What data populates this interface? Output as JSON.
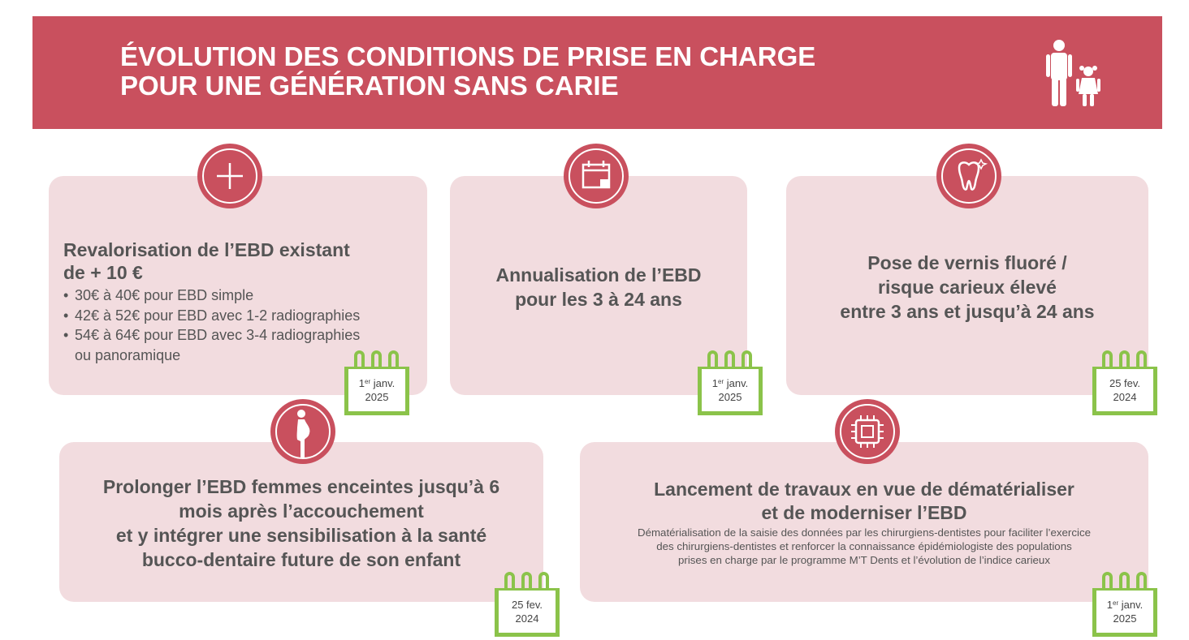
{
  "header": {
    "title_line1": "ÉVOLUTION DES CONDITIONS DE PRISE EN CHARGE",
    "title_line2": "POUR UNE GÉNÉRATION SANS CARIE"
  },
  "colors": {
    "accent": "#c9505e",
    "card_bg": "#f2dcdf",
    "calendar": "#8bc34a",
    "text": "#555555"
  },
  "cards": [
    {
      "icon": "plus-icon",
      "title_line1": "Revalorisation de l’EBD existant",
      "title_line2": "de + 10 €",
      "items": [
        "30€ à 40€ pour EBD simple",
        "42€ à 52€ pour EBD avec 1-2 radiographies",
        "54€ à 64€ pour EBD avec 3-4 radiographies",
        "ou panoramique"
      ],
      "date": {
        "day": "1",
        "sup": "er",
        "month": " janv.",
        "year": "2025"
      }
    },
    {
      "icon": "calendar-icon",
      "title_line1": "Annualisation de l’EBD",
      "title_line2": "pour les 3 à 24 ans",
      "date": {
        "day": "1",
        "sup": "er",
        "month": " janv.",
        "year": "2025"
      }
    },
    {
      "icon": "tooth-icon",
      "title_line1": "Pose de vernis fluoré /",
      "title_line2": "risque carieux élevé",
      "title_line3": "entre 3 ans et jusqu’à 24 ans",
      "date": {
        "line1": "25 fev.",
        "year": "2024"
      }
    },
    {
      "icon": "pregnant-woman-icon",
      "title_line1": "Prolonger l’EBD femmes enceintes jusqu’à 6",
      "title_line2": "mois après l’accouchement",
      "title_line3": "et y intégrer une sensibilisation à la santé",
      "title_line4": "bucco-dentaire future de son enfant",
      "date": {
        "line1": "25 fev.",
        "year": "2024"
      }
    },
    {
      "icon": "chip-icon",
      "title_line1": "Lancement de travaux en vue de dématérialiser",
      "title_line2": "et de moderniser l’EBD",
      "desc_line1": "Dématérialisation de la saisie des données par les chirurgiens-dentistes pour faciliter l’exercice",
      "desc_line2": "des chirurgiens-dentistes et renforcer la connaissance épidémiologiste des populations",
      "desc_line3": "prises en charge par le programme M’T Dents et l’évolution de l’indice carieux",
      "date": {
        "day": "1",
        "sup": "er",
        "month": " janv.",
        "year": "2025"
      }
    }
  ]
}
